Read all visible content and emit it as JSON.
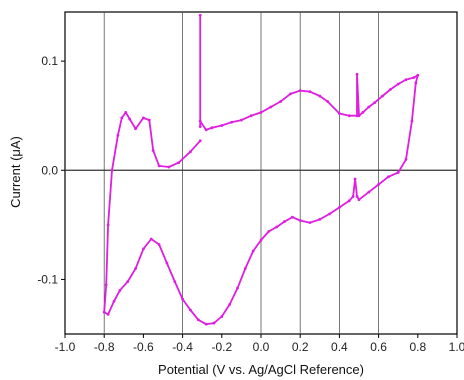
{
  "chart_data": {
    "type": "line",
    "title": "",
    "xlabel": "Potential (V vs. Ag/AgCl Reference)",
    "ylabel": "Current (μA)",
    "xlim": [
      -1.0,
      1.0
    ],
    "ylim": [
      -0.15,
      0.145
    ],
    "xticks": [
      "-1.0",
      "-0.8",
      "-0.6",
      "-0.4",
      "-0.2",
      "0.0",
      "0.2",
      "0.4",
      "0.6",
      "0.8",
      "1.0"
    ],
    "yticks": [
      "0.1",
      "0.0",
      "-0.1"
    ],
    "vertical_gridlines_x": [
      -0.8,
      -0.4,
      0.0,
      0.2,
      0.4,
      0.6
    ],
    "zero_line": true,
    "legend": "none",
    "series": [
      {
        "color": "#e01ee0",
        "points": [
          [
            -0.31,
            0.027
          ],
          [
            -0.36,
            0.017
          ],
          [
            -0.42,
            0.007
          ],
          [
            -0.47,
            0.003
          ],
          [
            -0.52,
            0.004
          ],
          [
            -0.55,
            0.018
          ],
          [
            -0.57,
            0.046
          ],
          [
            -0.6,
            0.048
          ],
          [
            -0.64,
            0.038
          ],
          [
            -0.67,
            0.047
          ],
          [
            -0.69,
            0.053
          ],
          [
            -0.71,
            0.048
          ],
          [
            -0.73,
            0.032
          ],
          [
            -0.76,
            0.0
          ],
          [
            -0.78,
            -0.05
          ],
          [
            -0.79,
            -0.105
          ],
          [
            -0.8,
            -0.13
          ],
          [
            -0.78,
            -0.132
          ],
          [
            -0.75,
            -0.12
          ],
          [
            -0.72,
            -0.11
          ],
          [
            -0.68,
            -0.102
          ],
          [
            -0.64,
            -0.09
          ],
          [
            -0.6,
            -0.072
          ],
          [
            -0.56,
            -0.063
          ],
          [
            -0.52,
            -0.068
          ],
          [
            -0.48,
            -0.085
          ],
          [
            -0.44,
            -0.102
          ],
          [
            -0.4,
            -0.118
          ],
          [
            -0.36,
            -0.128
          ],
          [
            -0.32,
            -0.137
          ],
          [
            -0.28,
            -0.141
          ],
          [
            -0.24,
            -0.14
          ],
          [
            -0.2,
            -0.134
          ],
          [
            -0.16,
            -0.123
          ],
          [
            -0.12,
            -0.108
          ],
          [
            -0.08,
            -0.09
          ],
          [
            -0.04,
            -0.074
          ],
          [
            0.0,
            -0.064
          ],
          [
            0.04,
            -0.056
          ],
          [
            0.08,
            -0.052
          ],
          [
            0.12,
            -0.047
          ],
          [
            0.16,
            -0.043
          ],
          [
            0.2,
            -0.046
          ],
          [
            0.25,
            -0.048
          ],
          [
            0.3,
            -0.045
          ],
          [
            0.35,
            -0.04
          ],
          [
            0.4,
            -0.034
          ],
          [
            0.45,
            -0.028
          ],
          [
            0.47,
            -0.024
          ],
          [
            0.48,
            -0.008
          ],
          [
            0.49,
            -0.024
          ],
          [
            0.5,
            -0.027
          ],
          [
            0.55,
            -0.02
          ],
          [
            0.6,
            -0.013
          ],
          [
            0.65,
            -0.006
          ],
          [
            0.7,
            -0.002
          ],
          [
            0.74,
            0.01
          ],
          [
            0.77,
            0.045
          ],
          [
            0.79,
            0.08
          ],
          [
            0.8,
            0.087
          ],
          [
            0.78,
            0.085
          ],
          [
            0.74,
            0.083
          ],
          [
            0.7,
            0.079
          ],
          [
            0.66,
            0.074
          ],
          [
            0.62,
            0.068
          ],
          [
            0.58,
            0.062
          ],
          [
            0.55,
            0.058
          ],
          [
            0.52,
            0.053
          ],
          [
            0.5,
            0.05
          ],
          [
            0.49,
            0.088
          ],
          [
            0.49,
            0.05
          ],
          [
            0.45,
            0.05
          ],
          [
            0.4,
            0.052
          ],
          [
            0.34,
            0.063
          ],
          [
            0.3,
            0.068
          ],
          [
            0.25,
            0.072
          ],
          [
            0.2,
            0.073
          ],
          [
            0.15,
            0.07
          ],
          [
            0.1,
            0.063
          ],
          [
            0.05,
            0.058
          ],
          [
            0.0,
            0.053
          ],
          [
            -0.05,
            0.05
          ],
          [
            -0.1,
            0.046
          ],
          [
            -0.15,
            0.044
          ],
          [
            -0.2,
            0.041
          ],
          [
            -0.25,
            0.039
          ],
          [
            -0.28,
            0.037
          ],
          [
            -0.31,
            0.045
          ],
          [
            -0.31,
            0.142
          ],
          [
            -0.31,
            0.04
          ]
        ]
      }
    ]
  }
}
